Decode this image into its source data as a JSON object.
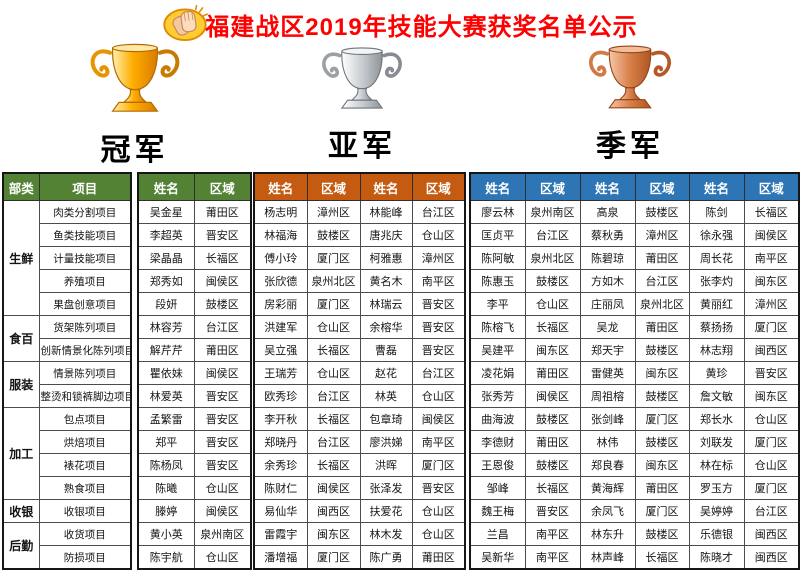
{
  "title": {
    "text": "福建战区2019年技能大赛获奖名单公示",
    "icon": "clapping-hands-icon"
  },
  "colors": {
    "title_red": "#FF0000",
    "header_green": "#548235",
    "header_orange": "#C55A11",
    "header_blue": "#2E75B6",
    "trophy_gold": "#FFAE00",
    "trophy_silver": "#C9CDD1",
    "trophy_bronze": "#D97F4A"
  },
  "awards": [
    {
      "label": "冠军",
      "trophy": "gold-trophy-icon"
    },
    {
      "label": "亚军",
      "trophy": "silver-trophy-icon"
    },
    {
      "label": "季军",
      "trophy": "bronze-trophy-icon"
    }
  ],
  "table": {
    "headers": {
      "category": "部类",
      "project": "项目",
      "name": "姓名",
      "region": "区域"
    },
    "categories": [
      {
        "label": "生鲜",
        "rowspan": 5
      },
      {
        "label": "食百",
        "rowspan": 2
      },
      {
        "label": "服装",
        "rowspan": 2
      },
      {
        "label": "加工",
        "rowspan": 4
      },
      {
        "label": "收银",
        "rowspan": 1
      },
      {
        "label": "后勤",
        "rowspan": 2
      }
    ],
    "rows": [
      {
        "project": "肉类分割项目",
        "champion": {
          "name": "吴金星",
          "region": "莆田区"
        },
        "runner_up": [
          {
            "name": "杨志明",
            "region": "漳州区"
          },
          {
            "name": "林能峰",
            "region": "台江区"
          }
        ],
        "third": [
          {
            "name": "廖云林",
            "region": "泉州南区"
          },
          {
            "name": "高泉",
            "region": "鼓楼区"
          },
          {
            "name": "陈剑",
            "region": "长福区"
          }
        ]
      },
      {
        "project": "鱼类技能项目",
        "champion": {
          "name": "李超英",
          "region": "晋安区"
        },
        "runner_up": [
          {
            "name": "林福海",
            "region": "鼓楼区"
          },
          {
            "name": "唐兆庆",
            "region": "仓山区"
          }
        ],
        "third": [
          {
            "name": "匡贞平",
            "region": "台江区"
          },
          {
            "name": "蔡秋勇",
            "region": "漳州区"
          },
          {
            "name": "徐永强",
            "region": "闽侯区"
          }
        ]
      },
      {
        "project": "计量技能项目",
        "champion": {
          "name": "梁晶晶",
          "region": "长福区"
        },
        "runner_up": [
          {
            "name": "傅小玲",
            "region": "厦门区"
          },
          {
            "name": "柯雅惠",
            "region": "漳州区"
          }
        ],
        "third": [
          {
            "name": "陈阿敏",
            "region": "泉州北区"
          },
          {
            "name": "陈碧琼",
            "region": "莆田区"
          },
          {
            "name": "周长花",
            "region": "南平区"
          }
        ]
      },
      {
        "project": "养殖项目",
        "champion": {
          "name": "郑秀如",
          "region": "闽侯区"
        },
        "runner_up": [
          {
            "name": "张欣德",
            "region": "泉州北区"
          },
          {
            "name": "黄名木",
            "region": "南平区"
          }
        ],
        "third": [
          {
            "name": "陈惠玉",
            "region": "鼓楼区"
          },
          {
            "name": "方如木",
            "region": "台江区"
          },
          {
            "name": "张李灼",
            "region": "闽东区"
          }
        ]
      },
      {
        "project": "果盘创意项目",
        "champion": {
          "name": "段妍",
          "region": "鼓楼区"
        },
        "runner_up": [
          {
            "name": "房彩丽",
            "region": "厦门区"
          },
          {
            "name": "林瑞云",
            "region": "晋安区"
          }
        ],
        "third": [
          {
            "name": "李平",
            "region": "仓山区"
          },
          {
            "name": "庄丽凤",
            "region": "泉州北区"
          },
          {
            "name": "黄丽红",
            "region": "漳州区"
          }
        ]
      },
      {
        "project": "货架陈列项目",
        "champion": {
          "name": "林容芳",
          "region": "台江区"
        },
        "runner_up": [
          {
            "name": "洪建军",
            "region": "仓山区"
          },
          {
            "name": "余榕华",
            "region": "晋安区"
          }
        ],
        "third": [
          {
            "name": "陈榕飞",
            "region": "长福区"
          },
          {
            "name": "吴龙",
            "region": "莆田区"
          },
          {
            "name": "蔡扬扬",
            "region": "厦门区"
          }
        ]
      },
      {
        "project": "创新情景化陈列项目",
        "champion": {
          "name": "解芹芹",
          "region": "莆田区"
        },
        "runner_up": [
          {
            "name": "吴立强",
            "region": "长福区"
          },
          {
            "name": "曹磊",
            "region": "晋安区"
          }
        ],
        "third": [
          {
            "name": "吴建平",
            "region": "闽东区"
          },
          {
            "name": "郑天宇",
            "region": "鼓楼区"
          },
          {
            "name": "林志翔",
            "region": "闽西区"
          }
        ]
      },
      {
        "project": "情景陈列项目",
        "champion": {
          "name": "瞿依妹",
          "region": "闽侯区"
        },
        "runner_up": [
          {
            "name": "王瑞芳",
            "region": "仓山区"
          },
          {
            "name": "赵花",
            "region": "台江区"
          }
        ],
        "third": [
          {
            "name": "凌花娟",
            "region": "莆田区"
          },
          {
            "name": "雷健英",
            "region": "闽东区"
          },
          {
            "name": "黄珍",
            "region": "晋安区"
          }
        ]
      },
      {
        "project": "整烫和锁裤脚边项目",
        "champion": {
          "name": "林爱英",
          "region": "晋安区"
        },
        "runner_up": [
          {
            "name": "欧秀珍",
            "region": "台江区"
          },
          {
            "name": "林英",
            "region": "仓山区"
          }
        ],
        "third": [
          {
            "name": "张秀芳",
            "region": "闽侯区"
          },
          {
            "name": "周祖榕",
            "region": "鼓楼区"
          },
          {
            "name": "詹文敏",
            "region": "闽东区"
          }
        ]
      },
      {
        "project": "包点项目",
        "champion": {
          "name": "孟繁雷",
          "region": "晋安区"
        },
        "runner_up": [
          {
            "name": "李开秋",
            "region": "长福区"
          },
          {
            "name": "包章琦",
            "region": "闽侯区"
          }
        ],
        "third": [
          {
            "name": "曲海波",
            "region": "鼓楼区"
          },
          {
            "name": "张剑峰",
            "region": "厦门区"
          },
          {
            "name": "郑长水",
            "region": "仓山区"
          }
        ]
      },
      {
        "project": "烘焙项目",
        "champion": {
          "name": "郑平",
          "region": "晋安区"
        },
        "runner_up": [
          {
            "name": "郑晓丹",
            "region": "台江区"
          },
          {
            "name": "廖洪娣",
            "region": "南平区"
          }
        ],
        "third": [
          {
            "name": "李德财",
            "region": "莆田区"
          },
          {
            "name": "林伟",
            "region": "鼓楼区"
          },
          {
            "name": "刘联发",
            "region": "厦门区"
          }
        ]
      },
      {
        "project": "裱花项目",
        "champion": {
          "name": "陈杨凤",
          "region": "晋安区"
        },
        "runner_up": [
          {
            "name": "余秀珍",
            "region": "长福区"
          },
          {
            "name": "洪晖",
            "region": "厦门区"
          }
        ],
        "third": [
          {
            "name": "王恩俊",
            "region": "鼓楼区"
          },
          {
            "name": "郑良春",
            "region": "闽东区"
          },
          {
            "name": "林在标",
            "region": "仓山区"
          }
        ]
      },
      {
        "project": "熟食项目",
        "champion": {
          "name": "陈曦",
          "region": "仓山区"
        },
        "runner_up": [
          {
            "name": "陈财仁",
            "region": "闽侯区"
          },
          {
            "name": "张泽发",
            "region": "晋安区"
          }
        ],
        "third": [
          {
            "name": "邹峰",
            "region": "长福区"
          },
          {
            "name": "黄海辉",
            "region": "莆田区"
          },
          {
            "name": "罗玉方",
            "region": "厦门区"
          }
        ]
      },
      {
        "project": "收银项目",
        "champion": {
          "name": "滕婷",
          "region": "闽侯区"
        },
        "runner_up": [
          {
            "name": "易仙华",
            "region": "闽西区"
          },
          {
            "name": "扶爱花",
            "region": "仓山区"
          }
        ],
        "third": [
          {
            "name": "魏王梅",
            "region": "晋安区"
          },
          {
            "name": "余凤飞",
            "region": "厦门区"
          },
          {
            "name": "吴婷婷",
            "region": "台江区"
          }
        ]
      },
      {
        "project": "收货项目",
        "champion": {
          "name": "黄小英",
          "region": "泉州南区"
        },
        "runner_up": [
          {
            "name": "雷霞宇",
            "region": "闽东区"
          },
          {
            "name": "林木发",
            "region": "仓山区"
          }
        ],
        "third": [
          {
            "name": "兰昌",
            "region": "南平区"
          },
          {
            "name": "林东升",
            "region": "鼓楼区"
          },
          {
            "name": "乐德银",
            "region": "闽西区"
          }
        ]
      },
      {
        "project": "防损项目",
        "champion": {
          "name": "陈宇航",
          "region": "仓山区"
        },
        "runner_up": [
          {
            "name": "潘增福",
            "region": "厦门区"
          },
          {
            "name": "陈广勇",
            "region": "莆田区"
          }
        ],
        "third": [
          {
            "name": "吴新华",
            "region": "南平区"
          },
          {
            "name": "林声峰",
            "region": "长福区"
          },
          {
            "name": "陈晓才",
            "region": "闽西区"
          }
        ]
      }
    ]
  }
}
